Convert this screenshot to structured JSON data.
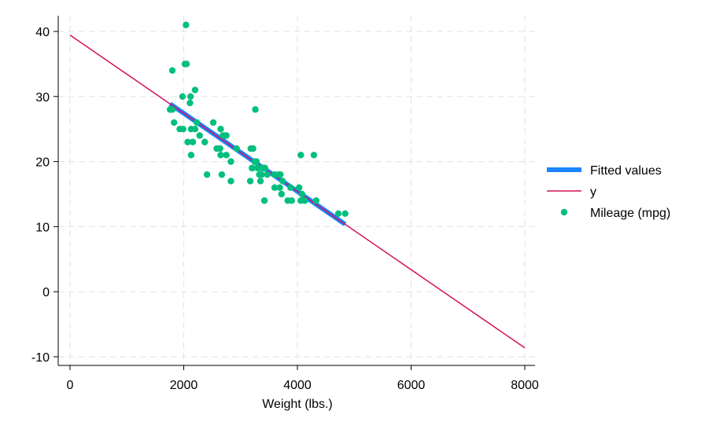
{
  "chart_data": {
    "type": "scatter",
    "title": "",
    "xlabel": "Weight (lbs.)",
    "ylabel": "",
    "xlim": [
      0,
      8000
    ],
    "ylim": [
      -10,
      40
    ],
    "xticks": [
      0,
      2000,
      4000,
      6000,
      8000
    ],
    "yticks": [
      -10,
      0,
      10,
      20,
      30,
      40
    ],
    "grid": true,
    "legend_position": "right",
    "series": [
      {
        "name": "Fitted values",
        "kind": "line",
        "color": "#1a85ff",
        "x": [
          1760,
          4840
        ],
        "y": [
          28.86,
          10.36
        ]
      },
      {
        "name": "y",
        "kind": "line",
        "color": "#d41159",
        "x": [
          0,
          8000
        ],
        "y": [
          39.44,
          -8.63
        ]
      },
      {
        "name": "Mileage (mpg)",
        "kind": "scatter",
        "color": "#00bf7d",
        "x": [
          2930,
          3350,
          2640,
          3250,
          4080,
          3670,
          2230,
          3280,
          3880,
          3400,
          4330,
          3900,
          4290,
          2110,
          3690,
          3180,
          3220,
          2750,
          3430,
          2120,
          3600,
          3600,
          3740,
          1800,
          2650,
          4840,
          4720,
          3830,
          2580,
          4060,
          3720,
          3370,
          4130,
          2830,
          4060,
          3310,
          3300,
          3690,
          3370,
          2730,
          4030,
          3260,
          1800,
          2200,
          2520,
          3330,
          3700,
          3470,
          3210,
          3200,
          3420,
          2690,
          2830,
          2070,
          2650,
          2370,
          2020,
          2280,
          2750,
          2130,
          1760,
          1980,
          3420,
          1830,
          2050,
          2410,
          2200,
          2670,
          2160,
          2040,
          1930,
          1990,
          3170,
          2130
        ],
        "y": [
          22,
          17,
          22,
          20,
          15,
          18,
          26,
          20,
          16,
          19,
          14,
          14,
          21,
          29,
          16,
          22,
          22,
          24,
          19,
          30,
          18,
          16,
          17,
          28,
          21,
          12,
          12,
          14,
          22,
          14,
          15,
          18,
          14,
          20,
          21,
          19,
          19,
          18,
          19,
          24,
          16,
          28,
          34,
          25,
          26,
          18,
          18,
          18,
          19,
          19,
          19,
          24,
          17,
          23,
          25,
          23,
          35,
          24,
          21,
          25,
          28,
          30,
          14,
          26,
          35,
          18,
          31,
          18,
          23,
          41,
          25,
          25,
          17,
          21
        ]
      }
    ]
  }
}
